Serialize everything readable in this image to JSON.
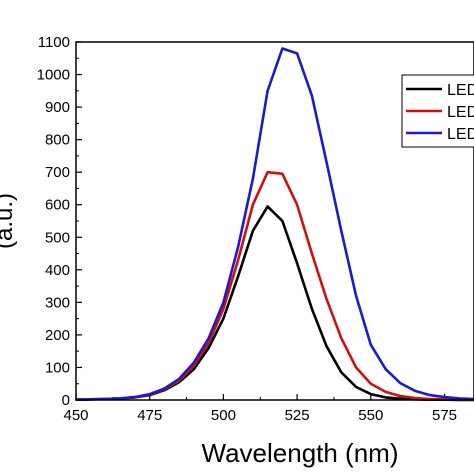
{
  "chart_data": {
    "type": "line",
    "xlabel": "Wavelength (nm)",
    "ylabel": "(a.u.)",
    "xlim": [
      450,
      585
    ],
    "ylim": [
      0,
      1100
    ],
    "x_ticks": [
      "450",
      "475",
      "500",
      "525",
      "550",
      "575"
    ],
    "y_ticks": [
      "0",
      "100",
      "200",
      "300",
      "400",
      "500",
      "600",
      "700",
      "800",
      "900",
      "1000",
      "1100"
    ],
    "x_tick_values": [
      450,
      475,
      500,
      525,
      550,
      575
    ],
    "y_tick_values": [
      0,
      100,
      200,
      300,
      400,
      500,
      600,
      700,
      800,
      900,
      1000,
      1100
    ],
    "x": [
      450,
      455,
      460,
      465,
      470,
      475,
      480,
      485,
      490,
      495,
      500,
      505,
      510,
      515,
      520,
      525,
      530,
      535,
      540,
      545,
      550,
      555,
      560,
      565,
      570,
      575,
      580,
      585
    ],
    "series": [
      {
        "name": "LED",
        "color": "#000000",
        "values": [
          1,
          2,
          3,
          5,
          8,
          15,
          30,
          55,
          95,
          160,
          250,
          380,
          520,
          595,
          550,
          420,
          280,
          165,
          85,
          40,
          18,
          8,
          4,
          2,
          1,
          1,
          0,
          0
        ]
      },
      {
        "name": "LED",
        "color": "#d01010",
        "values": [
          1,
          2,
          3,
          5,
          9,
          17,
          33,
          60,
          105,
          175,
          280,
          430,
          600,
          700,
          695,
          600,
          450,
          310,
          190,
          100,
          50,
          25,
          12,
          6,
          3,
          2,
          1,
          1
        ]
      },
      {
        "name": "LED",
        "color": "#1a1ad0",
        "values": [
          1,
          2,
          3,
          5,
          9,
          18,
          35,
          65,
          115,
          190,
          300,
          470,
          680,
          950,
          1080,
          1065,
          935,
          730,
          520,
          320,
          170,
          95,
          52,
          28,
          15,
          9,
          5,
          3
        ]
      }
    ],
    "legend_position": "top-right",
    "grid": false
  }
}
